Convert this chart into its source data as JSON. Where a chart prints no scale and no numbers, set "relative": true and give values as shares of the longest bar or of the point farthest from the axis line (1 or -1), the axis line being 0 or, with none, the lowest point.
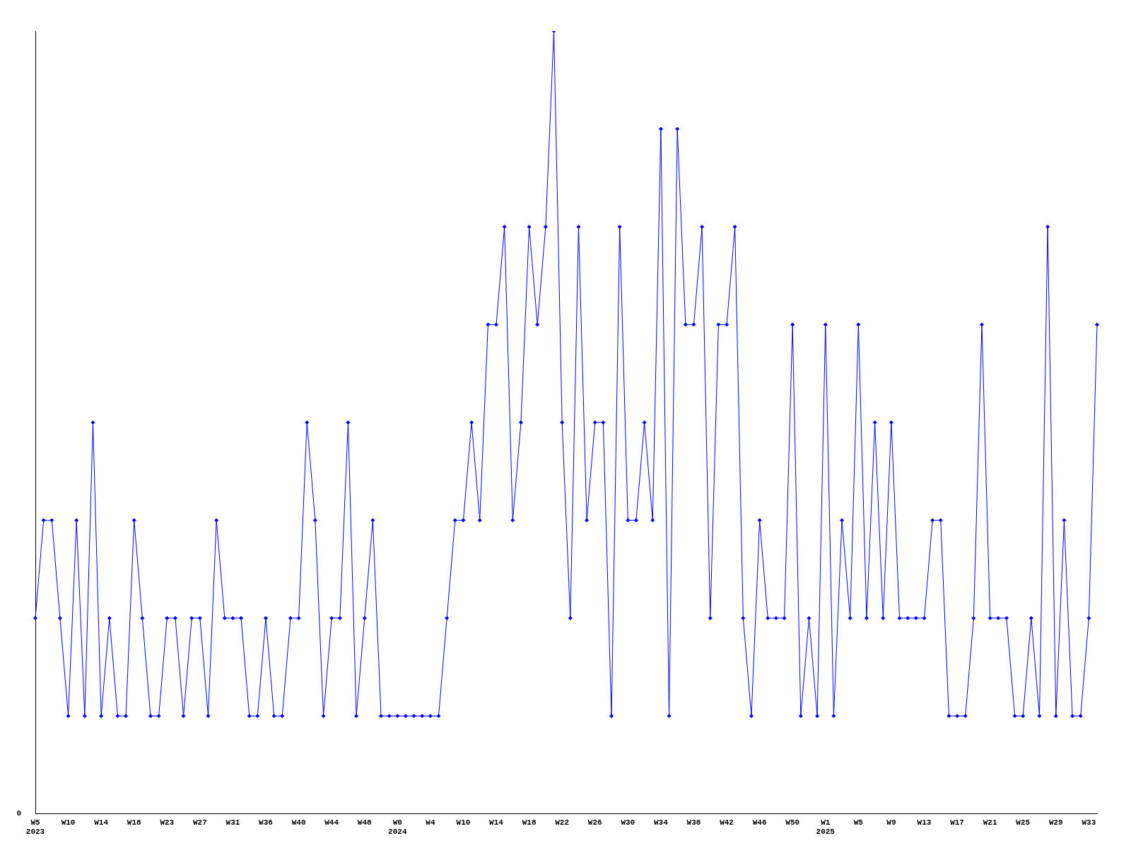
{
  "chart_data": {
    "type": "line",
    "relative": true,
    "categories": [
      "W5\n2023",
      null,
      null,
      null,
      "W10",
      null,
      null,
      null,
      "W14",
      null,
      null,
      null,
      "W18",
      null,
      null,
      null,
      "W23",
      null,
      null,
      null,
      "W27",
      null,
      null,
      null,
      "W31",
      null,
      null,
      null,
      "W36",
      null,
      null,
      null,
      "W40",
      null,
      null,
      null,
      "W44",
      null,
      null,
      null,
      "W48",
      null,
      null,
      null,
      "W0\n2024",
      null,
      null,
      null,
      "W4",
      null,
      null,
      null,
      "W10",
      null,
      null,
      null,
      "W14",
      null,
      null,
      null,
      "W18",
      null,
      null,
      null,
      "W22",
      null,
      null,
      null,
      "W26",
      null,
      null,
      null,
      "W30",
      null,
      null,
      null,
      "W34",
      null,
      null,
      null,
      "W38",
      null,
      null,
      null,
      "W42",
      null,
      null,
      null,
      "W46",
      null,
      null,
      null,
      "W50",
      null,
      null,
      null,
      "W1\n2025",
      null,
      null,
      null,
      "W5",
      null,
      null,
      null,
      "W9",
      null,
      null,
      null,
      "W13",
      null,
      null,
      null,
      "W17",
      null,
      null,
      null,
      "W21",
      null,
      null,
      null,
      "W25",
      null,
      null,
      null,
      "W29",
      null,
      null,
      null,
      "W33",
      null
    ],
    "series": [
      {
        "color": "#0000ff",
        "values": [
          0.25,
          0.375,
          0.375,
          0.25,
          0.125,
          0.375,
          0.125,
          0.5,
          0.125,
          0.25,
          0.125,
          0.125,
          0.375,
          0.25,
          0.125,
          0.125,
          0.25,
          0.25,
          0.125,
          0.25,
          0.25,
          0.125,
          0.375,
          0.25,
          0.25,
          0.25,
          0.125,
          0.125,
          0.25,
          0.125,
          0.125,
          0.25,
          0.25,
          0.5,
          0.375,
          0.125,
          0.25,
          0.25,
          0.5,
          0.125,
          0.25,
          0.375,
          0.125,
          0.125,
          0.125,
          0.125,
          0.125,
          0.125,
          0.125,
          0.125,
          0.25,
          0.375,
          0.375,
          0.5,
          0.375,
          0.625,
          0.625,
          0.75,
          0.375,
          0.5,
          0.75,
          0.625,
          0.75,
          1,
          0.5,
          0.25,
          0.75,
          0.375,
          0.5,
          0.5,
          0.125,
          0.75,
          0.375,
          0.375,
          0.5,
          0.375,
          0.875,
          0.125,
          0.875,
          0.625,
          0.625,
          0.75,
          0.25,
          0.625,
          0.625,
          0.75,
          0.25,
          0.125,
          0.375,
          0.25,
          0.25,
          0.25,
          0.625,
          0.125,
          0.25,
          0.125,
          0.625,
          0.125,
          0.375,
          0.25,
          0.625,
          0.25,
          0.5,
          0.25,
          0.5,
          0.25,
          0.25,
          0.25,
          0.25,
          0.375,
          0.375,
          0.125,
          0.125,
          0.125,
          0.25,
          0.625,
          0.25,
          0.25,
          0.25,
          0.125,
          0.125,
          0.25,
          0.125,
          0.75,
          0.125,
          0.375,
          0.125,
          0.125,
          0.25,
          0.625
        ]
      }
    ],
    "annotations": [
      "0"
    ],
    "marker": "diamond",
    "line_style": "solid",
    "grid": false,
    "legend": false
  }
}
